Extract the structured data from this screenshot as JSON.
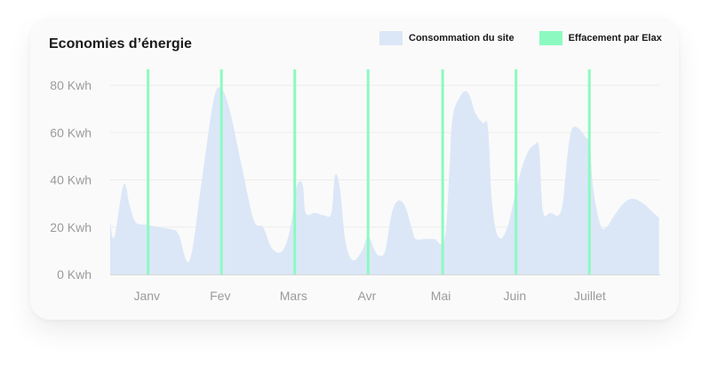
{
  "chart_data": {
    "type": "area",
    "title": "Economies d’énergie",
    "categories": [
      "Janv",
      "Fev",
      "Mars",
      "Avr",
      "Mai",
      "Juin",
      "Juillet"
    ],
    "y_ticks": [
      "0 Kwh",
      "20 Kwh",
      "40 Kwh",
      "60 Kwh",
      "80 Kwh"
    ],
    "ylim": [
      0,
      80
    ],
    "grid": true,
    "legend_position": "top-right",
    "series": [
      {
        "name": "Consommation du site",
        "kind": "area",
        "color": "#dbe7f7",
        "points": [
          [
            0.0,
            22
          ],
          [
            0.07,
            16
          ],
          [
            0.22,
            38
          ],
          [
            0.32,
            29
          ],
          [
            0.42,
            22
          ],
          [
            0.6,
            21
          ],
          [
            0.8,
            20
          ],
          [
            1.0,
            19
          ],
          [
            1.12,
            17
          ],
          [
            1.3,
            6
          ],
          [
            1.5,
            40
          ],
          [
            1.68,
            72
          ],
          [
            1.8,
            79
          ],
          [
            1.95,
            70
          ],
          [
            2.15,
            46
          ],
          [
            2.35,
            23
          ],
          [
            2.5,
            20
          ],
          [
            2.65,
            11
          ],
          [
            2.82,
            10
          ],
          [
            2.95,
            20
          ],
          [
            3.05,
            37
          ],
          [
            3.15,
            38
          ],
          [
            3.2,
            26
          ],
          [
            3.35,
            26
          ],
          [
            3.5,
            25
          ],
          [
            3.62,
            26
          ],
          [
            3.68,
            42
          ],
          [
            3.76,
            36
          ],
          [
            3.85,
            14
          ],
          [
            3.97,
            6
          ],
          [
            4.12,
            10
          ],
          [
            4.22,
            16
          ],
          [
            4.33,
            10
          ],
          [
            4.4,
            8
          ],
          [
            4.5,
            10
          ],
          [
            4.6,
            25
          ],
          [
            4.7,
            31
          ],
          [
            4.82,
            29
          ],
          [
            4.95,
            18
          ],
          [
            5.0,
            15
          ],
          [
            5.15,
            15
          ],
          [
            5.3,
            15
          ],
          [
            5.47,
            15
          ],
          [
            5.55,
            44
          ],
          [
            5.6,
            66
          ],
          [
            5.72,
            75
          ],
          [
            5.85,
            77
          ],
          [
            5.98,
            68
          ],
          [
            6.1,
            64
          ],
          [
            6.18,
            62
          ],
          [
            6.25,
            30
          ],
          [
            6.35,
            16
          ],
          [
            6.5,
            20
          ],
          [
            6.68,
            40
          ],
          [
            6.82,
            51
          ],
          [
            6.95,
            55
          ],
          [
            7.02,
            53
          ],
          [
            7.08,
            27
          ],
          [
            7.2,
            26
          ],
          [
            7.38,
            27
          ],
          [
            7.48,
            50
          ],
          [
            7.55,
            61
          ],
          [
            7.65,
            62
          ],
          [
            7.78,
            58
          ],
          [
            7.85,
            55
          ],
          [
            7.9,
            37
          ],
          [
            8.02,
            21
          ],
          [
            8.12,
            20
          ],
          [
            8.25,
            25
          ],
          [
            8.4,
            30
          ],
          [
            8.55,
            32
          ],
          [
            8.72,
            30
          ],
          [
            8.85,
            27
          ],
          [
            8.98,
            24
          ]
        ]
      },
      {
        "name": "Effacement par Elax",
        "kind": "markers",
        "color": "#8cfac0",
        "x": [
          0.62,
          1.82,
          3.02,
          4.22,
          5.44,
          6.64,
          7.84
        ]
      }
    ]
  }
}
